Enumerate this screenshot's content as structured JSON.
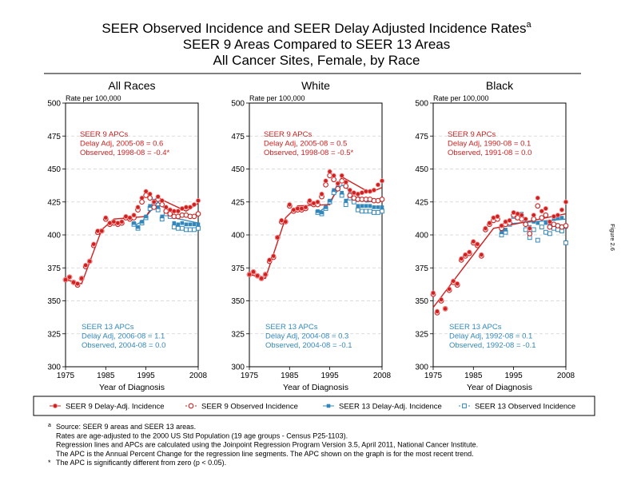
{
  "title": {
    "line1": "SEER Observed Incidence and SEER Delay Adjusted Incidence Rates",
    "sup": "a",
    "line2": "SEER 9 Areas Compared to SEER 13 Areas",
    "line3": "All Cancer Sites, Female, by Race"
  },
  "side_label": "Figure 2.6",
  "colors": {
    "seer9": "#cc2222",
    "seer13": "#3388bb",
    "grid": "#d0d0d0"
  },
  "legend": [
    {
      "label": "SEER 9 Delay-Adj. Incidence",
      "series": "s9d",
      "marker": "filled-circle"
    },
    {
      "label": "SEER 9 Observed Incidence",
      "series": "s9o",
      "marker": "open-circle"
    },
    {
      "label": "SEER 13 Delay-Adj. Incidence",
      "series": "s13d",
      "marker": "filled-square"
    },
    {
      "label": "SEER 13 Observed Incidence",
      "series": "s13o",
      "marker": "open-square"
    }
  ],
  "footnotes": [
    {
      "mark": "a",
      "text": "Source: SEER 9 areas and SEER 13 areas."
    },
    {
      "mark": "",
      "text": "Rates are age-adjusted to the 2000 US Std Population (19 age groups - Census P25-1103)."
    },
    {
      "mark": "",
      "text": "Regression lines and APCs are calculated using the Joinpoint Regression Program Version 3.5, April 2011, National Cancer Institute."
    },
    {
      "mark": "",
      "text": "The APC is the Annual Percent Change for the regression line segments. The APC shown on the graph is for the most recent trend."
    },
    {
      "mark": "*",
      "text": "The APC is significantly different from zero (p < 0.05)."
    }
  ],
  "chart_data": [
    {
      "type": "scatter",
      "title": "All Races",
      "ylabel": "Rate per 100,000",
      "xlabel": "Year of Diagnosis",
      "xlim": [
        1975,
        2008
      ],
      "ylim": [
        300,
        500
      ],
      "xticks": [
        1975,
        1985,
        1995,
        2008
      ],
      "yticks": [
        300,
        325,
        350,
        375,
        400,
        425,
        450,
        475,
        500
      ],
      "grid": true,
      "apc_seer9": [
        "SEER 9 APCs",
        "Delay Adj, 2005-08 = 0.6",
        "Observed, 1998-08 = -0.4*"
      ],
      "apc_seer13": [
        "SEER 13 APCs",
        "Delay Adj, 2006-08 = 1.1",
        "Observed, 2004-08 = 0.0"
      ],
      "series": {
        "s9d": {
          "x": [
            1975,
            1976,
            1977,
            1978,
            1979,
            1980,
            1981,
            1982,
            1983,
            1984,
            1985,
            1986,
            1987,
            1988,
            1989,
            1990,
            1991,
            1992,
            1993,
            1994,
            1995,
            1996,
            1997,
            1998,
            1999,
            2000,
            2001,
            2002,
            2003,
            2004,
            2005,
            2006,
            2007,
            2008
          ],
          "y": [
            366,
            368,
            364,
            363,
            367,
            377,
            380,
            393,
            403,
            403,
            413,
            409,
            410,
            409,
            410,
            414,
            413,
            415,
            421,
            428,
            433,
            431,
            425,
            429,
            426,
            421,
            419,
            418,
            418,
            420,
            421,
            421,
            423,
            426
          ]
        },
        "s9o": {
          "x": [
            1975,
            1976,
            1977,
            1978,
            1979,
            1980,
            1981,
            1982,
            1983,
            1984,
            1985,
            1986,
            1987,
            1988,
            1989,
            1990,
            1991,
            1992,
            1993,
            1994,
            1995,
            1996,
            1997,
            1998,
            1999,
            2000,
            2001,
            2002,
            2003,
            2004,
            2005,
            2006,
            2007,
            2008
          ],
          "y": [
            366,
            368,
            364,
            362,
            367,
            376,
            380,
            392,
            402,
            403,
            412,
            408,
            409,
            408,
            409,
            413,
            412,
            413,
            419,
            425,
            430,
            428,
            421,
            427,
            423,
            418,
            416,
            414,
            414,
            415,
            415,
            414,
            414,
            416
          ]
        },
        "s13d": {
          "x": [
            1992,
            1993,
            1994,
            1995,
            1996,
            1997,
            1998,
            1999,
            2000,
            2001,
            2002,
            2003,
            2004,
            2005,
            2006,
            2007,
            2008
          ],
          "y": [
            409,
            406,
            410,
            414,
            422,
            426,
            421,
            414,
            418,
            417,
            409,
            408,
            409,
            408,
            408,
            408,
            408
          ]
        },
        "s13o": {
          "x": [
            1992,
            1993,
            1994,
            1995,
            1996,
            1997,
            1998,
            1999,
            2000,
            2001,
            2002,
            2003,
            2004,
            2005,
            2006,
            2007,
            2008
          ],
          "y": [
            408,
            405,
            409,
            413,
            420,
            424,
            419,
            412,
            416,
            414,
            406,
            405,
            405,
            404,
            404,
            404,
            405
          ]
        },
        "fit9": {
          "x": [
            1975,
            1979,
            1984,
            1987,
            1995,
            1998,
            2005,
            2008
          ],
          "y": [
            366,
            363,
            404,
            412,
            414,
            428,
            418,
            424
          ]
        },
        "fit13": {
          "x": [
            1992,
            1994,
            1998,
            2002,
            2008
          ],
          "y": [
            407,
            410,
            425,
            413,
            409
          ]
        }
      }
    },
    {
      "type": "scatter",
      "title": "White",
      "ylabel": "Rate per 100,000",
      "xlabel": "Year of Diagnosis",
      "xlim": [
        1975,
        2008
      ],
      "ylim": [
        300,
        500
      ],
      "xticks": [
        1975,
        1985,
        1995,
        2008
      ],
      "yticks": [
        300,
        325,
        350,
        375,
        400,
        425,
        450,
        475,
        500
      ],
      "grid": true,
      "apc_seer9": [
        "SEER 9 APCs",
        "Delay Adj, 2005-08 = 0.5",
        "Observed, 1998-08 = -0.5*"
      ],
      "apc_seer13": [
        "SEER 13 APCs",
        "Delay Adj, 2004-08 = 0.3",
        "Observed, 2004-08 = -0.1"
      ],
      "series": {
        "s9d": {
          "x": [
            1975,
            1976,
            1977,
            1978,
            1979,
            1980,
            1981,
            1982,
            1983,
            1984,
            1985,
            1986,
            1987,
            1988,
            1989,
            1990,
            1991,
            1992,
            1993,
            1994,
            1995,
            1996,
            1997,
            1998,
            1999,
            2000,
            2001,
            2002,
            2003,
            2004,
            2005,
            2006,
            2007,
            2008
          ],
          "y": [
            370,
            372,
            369,
            367,
            370,
            381,
            384,
            398,
            411,
            410,
            423,
            419,
            420,
            420,
            421,
            426,
            424,
            425,
            431,
            441,
            448,
            445,
            439,
            445,
            440,
            434,
            432,
            431,
            432,
            433,
            433,
            434,
            438,
            441
          ]
        },
        "s9o": {
          "x": [
            1975,
            1976,
            1977,
            1978,
            1979,
            1980,
            1981,
            1982,
            1983,
            1984,
            1985,
            1986,
            1987,
            1988,
            1989,
            1990,
            1991,
            1992,
            1993,
            1994,
            1995,
            1996,
            1997,
            1998,
            1999,
            2000,
            2001,
            2002,
            2003,
            2004,
            2005,
            2006,
            2007,
            2008
          ],
          "y": [
            370,
            372,
            369,
            367,
            370,
            380,
            383,
            398,
            410,
            410,
            422,
            418,
            419,
            419,
            420,
            425,
            423,
            423,
            429,
            438,
            445,
            442,
            435,
            441,
            437,
            430,
            428,
            427,
            427,
            427,
            427,
            426,
            426,
            427
          ]
        },
        "s13d": {
          "x": [
            1992,
            1993,
            1994,
            1995,
            1996,
            1997,
            1998,
            1999,
            2000,
            2001,
            2002,
            2003,
            2004,
            2005,
            2006,
            2007,
            2008
          ],
          "y": [
            418,
            417,
            421,
            426,
            434,
            437,
            432,
            426,
            431,
            428,
            422,
            422,
            422,
            422,
            421,
            421,
            421
          ]
        },
        "s13o": {
          "x": [
            1992,
            1993,
            1994,
            1995,
            1996,
            1997,
            1998,
            1999,
            2000,
            2001,
            2002,
            2003,
            2004,
            2005,
            2006,
            2007,
            2008
          ],
          "y": [
            417,
            416,
            420,
            425,
            432,
            435,
            430,
            423,
            428,
            425,
            419,
            418,
            418,
            418,
            417,
            417,
            418
          ]
        },
        "fit9": {
          "x": [
            1975,
            1979,
            1984,
            1987,
            1995,
            1998,
            2005,
            2008
          ],
          "y": [
            370,
            367,
            413,
            422,
            423,
            444,
            432,
            436
          ]
        },
        "fit13": {
          "x": [
            1992,
            1994,
            1998,
            2004,
            2008
          ],
          "y": [
            417,
            421,
            438,
            425,
            426
          ]
        }
      }
    },
    {
      "type": "scatter",
      "title": "Black",
      "ylabel": "Rate per 100,000",
      "xlabel": "Year of Diagnosis",
      "xlim": [
        1975,
        2008
      ],
      "ylim": [
        300,
        500
      ],
      "xticks": [
        1975,
        1985,
        1995,
        2008
      ],
      "yticks": [
        300,
        325,
        350,
        375,
        400,
        425,
        450,
        475,
        500
      ],
      "grid": true,
      "apc_seer9": [
        "SEER 9 APCs",
        "Delay Adj, 1990-08 = 0.1",
        "Observed, 1991-08 = 0.0"
      ],
      "apc_seer13": [
        "SEER 13 APCs",
        "Delay Adj, 1992-08 = 0.1",
        "Observed, 1992-08 = -0.1"
      ],
      "series": {
        "s9d": {
          "x": [
            1975,
            1976,
            1977,
            1978,
            1979,
            1980,
            1981,
            1982,
            1983,
            1984,
            1985,
            1986,
            1987,
            1988,
            1989,
            1990,
            1991,
            1992,
            1993,
            1994,
            1995,
            1996,
            1997,
            1998,
            1999,
            2000,
            2001,
            2002,
            2003,
            2004,
            2005,
            2006,
            2007,
            2008
          ],
          "y": [
            356,
            342,
            351,
            344,
            359,
            365,
            363,
            382,
            385,
            387,
            395,
            393,
            385,
            405,
            409,
            413,
            414,
            407,
            410,
            411,
            417,
            416,
            415,
            412,
            405,
            415,
            428,
            418,
            420,
            410,
            414,
            415,
            419,
            425
          ]
        },
        "s9o": {
          "x": [
            1975,
            1976,
            1977,
            1978,
            1979,
            1980,
            1981,
            1982,
            1983,
            1984,
            1985,
            1986,
            1987,
            1988,
            1989,
            1990,
            1991,
            1992,
            1993,
            1994,
            1995,
            1996,
            1997,
            1998,
            1999,
            2000,
            2001,
            2002,
            2003,
            2004,
            2005,
            2006,
            2007,
            2008
          ],
          "y": [
            355,
            341,
            350,
            344,
            358,
            364,
            362,
            381,
            384,
            386,
            394,
            392,
            384,
            404,
            408,
            411,
            412,
            405,
            408,
            409,
            415,
            413,
            412,
            408,
            401,
            412,
            422,
            413,
            415,
            406,
            408,
            407,
            406,
            407
          ]
        },
        "s13d": {
          "x": [
            1992,
            1993,
            1994,
            1995,
            1996,
            1997,
            1998,
            1999,
            2000,
            2001,
            2002,
            2003,
            2004,
            2005,
            2006,
            2007,
            2008
          ],
          "y": [
            402,
            404,
            410,
            416,
            415,
            416,
            409,
            406,
            410,
            409,
            413,
            409,
            409,
            412,
            413,
            413,
            406
          ]
        },
        "s13o": {
          "x": [
            1992,
            1993,
            1994,
            1995,
            1996,
            1997,
            1998,
            1999,
            2000,
            2001,
            2002,
            2003,
            2004,
            2005,
            2006,
            2007,
            2008
          ],
          "y": [
            400,
            402,
            408,
            414,
            413,
            413,
            404,
            398,
            404,
            396,
            406,
            402,
            401,
            405,
            404,
            403,
            394
          ]
        },
        "fit9": {
          "x": [
            1975,
            1982,
            1990,
            2008
          ],
          "y": [
            345,
            373,
            405,
            416
          ]
        },
        "fit13": {
          "x": [
            1992,
            2008
          ],
          "y": [
            408,
            412
          ]
        }
      }
    }
  ]
}
